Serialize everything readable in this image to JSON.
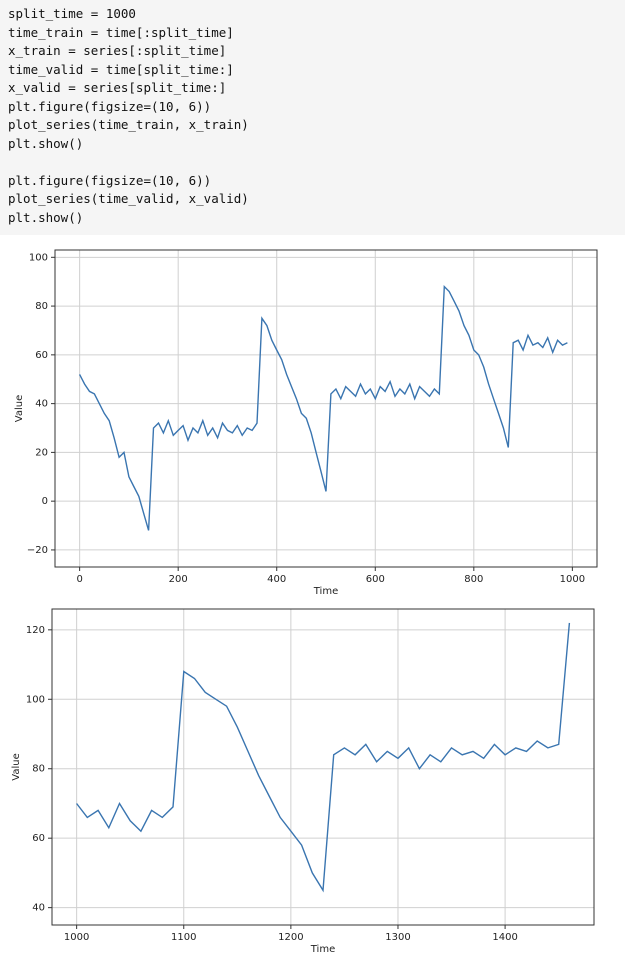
{
  "code": [
    "split_time = 1000",
    "time_train = time[:split_time]",
    "x_train = series[:split_time]",
    "time_valid = time[split_time:]",
    "x_valid = series[split_time:]",
    "plt.figure(figsize=(10, 6))",
    "plot_series(time_train, x_train)",
    "plt.show()",
    "",
    "plt.figure(figsize=(10, 6))",
    "plot_series(time_valid, x_valid)",
    "plt.show()"
  ],
  "chart_data": [
    {
      "type": "line",
      "x_label": "Time",
      "y_label": "Value",
      "grid": true,
      "color": "#3a75b0",
      "xlim": [
        -50,
        1050
      ],
      "xticks": [
        0,
        200,
        400,
        600,
        800,
        1000
      ],
      "ylim": [
        -27,
        103
      ],
      "yticks": [
        {
          "value": -20,
          "label": "−20"
        },
        0,
        20,
        40,
        60,
        80,
        100
      ],
      "x": [
        0,
        10,
        20,
        30,
        40,
        50,
        60,
        70,
        80,
        90,
        100,
        110,
        120,
        130,
        140,
        150,
        160,
        170,
        180,
        190,
        200,
        210,
        220,
        230,
        240,
        250,
        260,
        270,
        280,
        290,
        300,
        310,
        320,
        330,
        340,
        350,
        360,
        370,
        380,
        390,
        400,
        410,
        420,
        430,
        440,
        450,
        460,
        470,
        480,
        490,
        500,
        510,
        520,
        530,
        540,
        550,
        560,
        570,
        580,
        590,
        600,
        610,
        620,
        630,
        640,
        650,
        660,
        670,
        680,
        690,
        700,
        710,
        720,
        730,
        740,
        750,
        760,
        770,
        780,
        790,
        800,
        810,
        820,
        830,
        840,
        850,
        860,
        870,
        880,
        890,
        900,
        910,
        920,
        930,
        940,
        950,
        960,
        970,
        980,
        990
      ],
      "values": [
        52,
        48,
        45,
        44,
        40,
        36,
        33,
        26,
        18,
        20,
        10,
        6,
        2,
        -5,
        -12,
        30,
        32,
        28,
        33,
        27,
        29,
        31,
        25,
        30,
        28,
        33,
        27,
        30,
        26,
        32,
        29,
        28,
        31,
        27,
        30,
        29,
        32,
        75,
        72,
        66,
        62,
        58,
        52,
        47,
        42,
        36,
        34,
        28,
        20,
        12,
        4,
        44,
        46,
        42,
        47,
        45,
        43,
        48,
        44,
        46,
        42,
        47,
        45,
        49,
        43,
        46,
        44,
        48,
        42,
        47,
        45,
        43,
        46,
        44,
        88,
        86,
        82,
        78,
        72,
        68,
        62,
        60,
        55,
        48,
        42,
        36,
        30,
        22,
        65,
        66,
        62,
        68,
        64,
        65,
        63,
        67,
        61,
        66,
        64,
        65
      ]
    },
    {
      "type": "line",
      "x_label": "Time",
      "y_label": "Value",
      "grid": true,
      "color": "#3a75b0",
      "xlim": [
        977,
        1483
      ],
      "xticks": [
        1000,
        1100,
        1200,
        1300,
        1400
      ],
      "ylim": [
        35,
        126
      ],
      "yticks": [
        40,
        60,
        80,
        100,
        120
      ],
      "x": [
        1000,
        1010,
        1020,
        1030,
        1040,
        1050,
        1060,
        1070,
        1080,
        1090,
        1100,
        1110,
        1120,
        1130,
        1140,
        1150,
        1160,
        1170,
        1180,
        1190,
        1200,
        1210,
        1220,
        1230,
        1240,
        1250,
        1260,
        1270,
        1280,
        1290,
        1300,
        1310,
        1320,
        1330,
        1340,
        1350,
        1360,
        1370,
        1380,
        1390,
        1400,
        1410,
        1420,
        1430,
        1440,
        1450,
        1460
      ],
      "values": [
        70,
        66,
        68,
        63,
        70,
        65,
        62,
        68,
        66,
        69,
        108,
        106,
        102,
        100,
        98,
        92,
        85,
        78,
        72,
        66,
        62,
        58,
        50,
        45,
        84,
        86,
        84,
        87,
        82,
        85,
        83,
        86,
        80,
        84,
        82,
        86,
        84,
        85,
        83,
        87,
        84,
        86,
        85,
        88,
        86,
        87,
        122
      ]
    }
  ]
}
